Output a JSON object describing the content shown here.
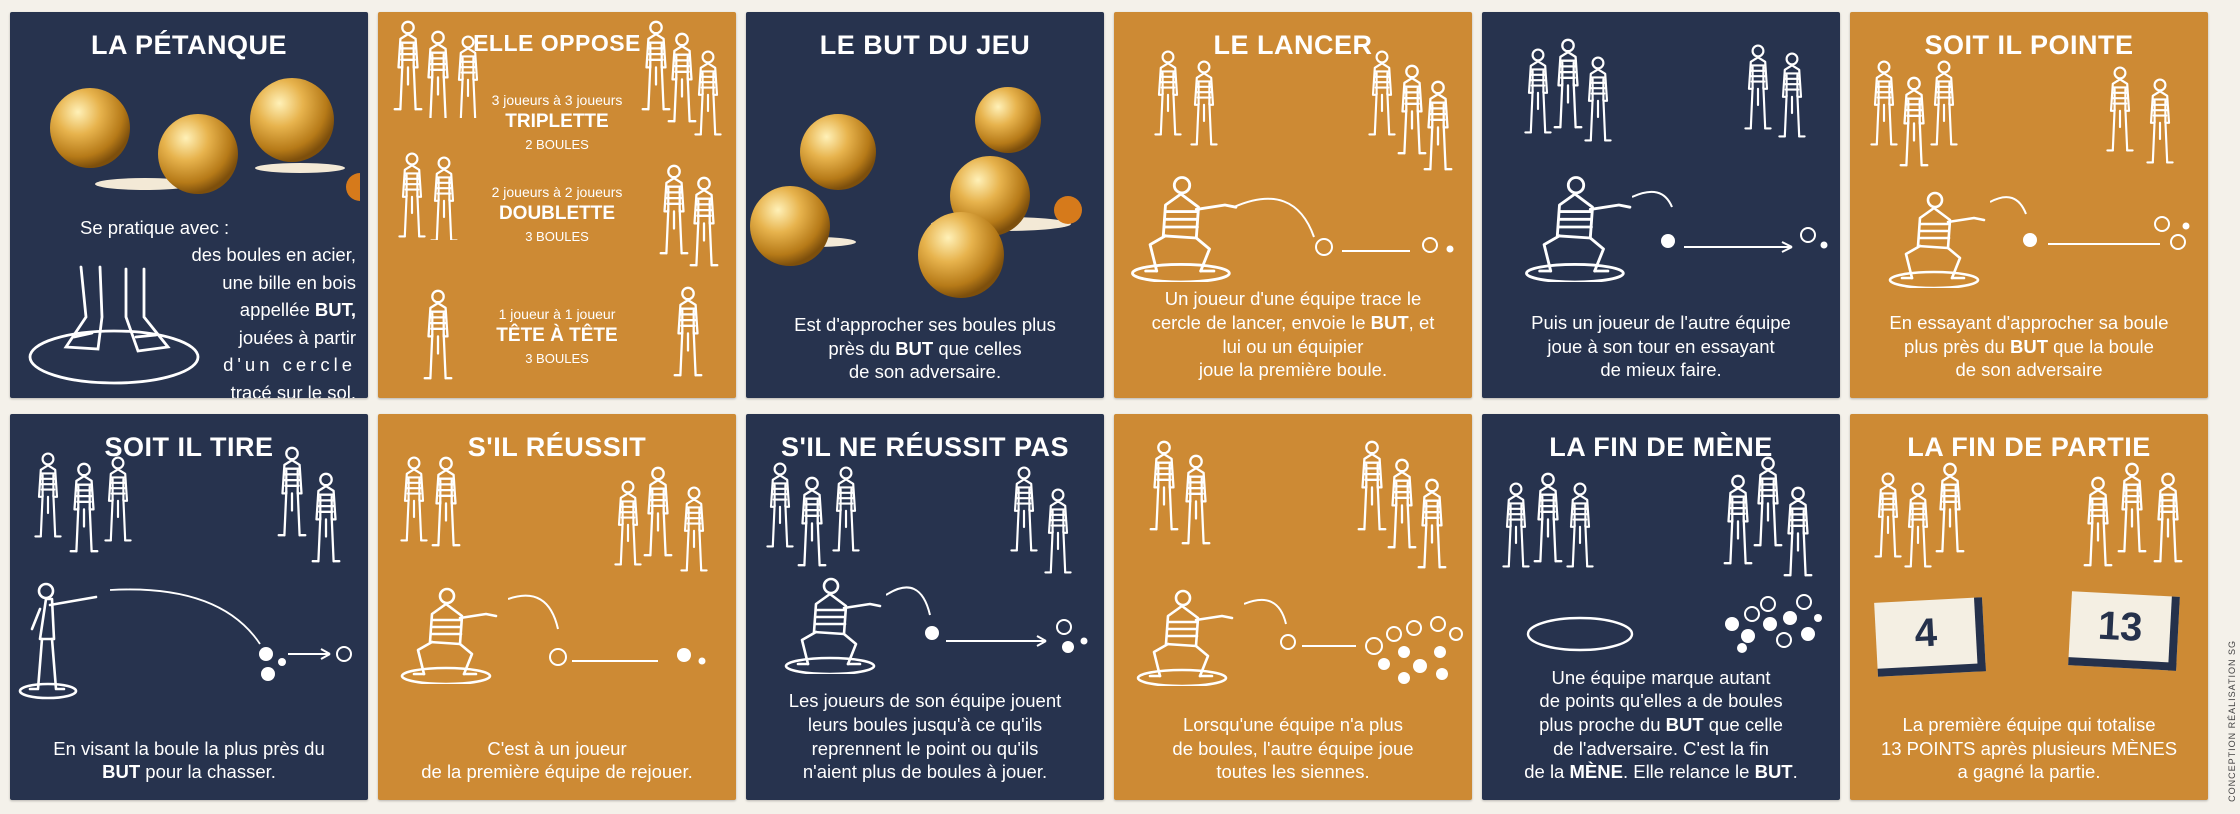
{
  "colors": {
    "navy": "#27334e",
    "ochre": "#cd8a34",
    "white": "#ffffff"
  },
  "cards": [
    {
      "title": "LA PÉTANQUE",
      "l1": "Se pratique avec :",
      "l2": "des boules en acier,",
      "l3": "une bille en bois",
      "l4": "appellée ",
      "l4b": "BUT,",
      "l5": "jouées à partir",
      "l6": "d'un cercle",
      "l7": "tracé sur le sol."
    },
    {
      "title": "ELLE OPPOSE",
      "rows": [
        {
          "players": "3 joueurs à 3 joueurs",
          "format": "TRIPLETTE",
          "boules": "2 BOULES"
        },
        {
          "players": "2 joueurs à 2 joueurs",
          "format": "DOUBLETTE",
          "boules": "3 BOULES"
        },
        {
          "players": "1 joueur à 1 joueur",
          "format": "TÊTE À TÊTE",
          "boules": "3 BOULES"
        }
      ]
    },
    {
      "title": "LE BUT DU JEU",
      "l1": "Est d'approcher ses boules plus",
      "l2": "près du ",
      "l2b": "BUT",
      "l2c": " que celles",
      "l3": "de son adversaire."
    },
    {
      "title": "LE LANCER",
      "l1": "Un joueur d'une équipe trace le",
      "l2": "cercle de lancer, envoie le ",
      "l2b": "BUT",
      "l2c": ", et",
      "l3": "lui ou un équipier",
      "l4": "joue la première boule."
    },
    {
      "title": "",
      "l1": "Puis un joueur de l'autre équipe",
      "l2": "joue à son tour en essayant",
      "l3": "de mieux faire."
    },
    {
      "title": "SOIT IL POINTE",
      "l1": "En essayant d'approcher sa boule",
      "l2": "plus près du ",
      "l2b": "BUT",
      "l2c": " que la boule",
      "l3": "de son adversaire"
    },
    {
      "title": "SOIT IL TIRE",
      "l1": "En visant la boule la plus près du",
      "l2b": "BUT",
      "l2c": " pour la chasser."
    },
    {
      "title": "S'IL RÉUSSIT",
      "l1": "C'est à un joueur",
      "l2": "de la première équipe de rejouer."
    },
    {
      "title": "S'IL NE RÉUSSIT PAS",
      "l1": "Les joueurs de son équipe jouent",
      "l2": "leurs boules jusqu'à ce qu'ils",
      "l3": "reprennent le point ou qu'ils",
      "l4": "n'aient plus de boules à jouer."
    },
    {
      "title": "",
      "l1": "Lorsqu'une équipe n'a plus",
      "l2": "de boules, l'autre équipe joue",
      "l3": "toutes les siennes."
    },
    {
      "title": "LA FIN DE MÈNE",
      "l1": "Une équipe marque autant",
      "l2": "de points qu'elles a de boules",
      "l3": "plus proche du ",
      "l3b": "BUT",
      "l3c": " que celle",
      "l4": "de l'adversaire. C'est la fin",
      "l5": "de la ",
      "l5b": "MÈNE",
      "l5c": ". Elle relance le ",
      "l5d": "BUT",
      "l5e": "."
    },
    {
      "title": "LA FIN DE PARTIE",
      "score_left": "4",
      "score_right": "13",
      "l1": "La première équipe qui totalise",
      "l2": "13 POINTS après plusieurs MÈNES",
      "l3": "a gagné la partie."
    }
  ],
  "credit": "CONCEPTION RÉALISATION SG",
  "icons": {
    "player": "player-figure-icon",
    "boule": "boule-icon",
    "crouching": "crouching-thrower-icon"
  }
}
